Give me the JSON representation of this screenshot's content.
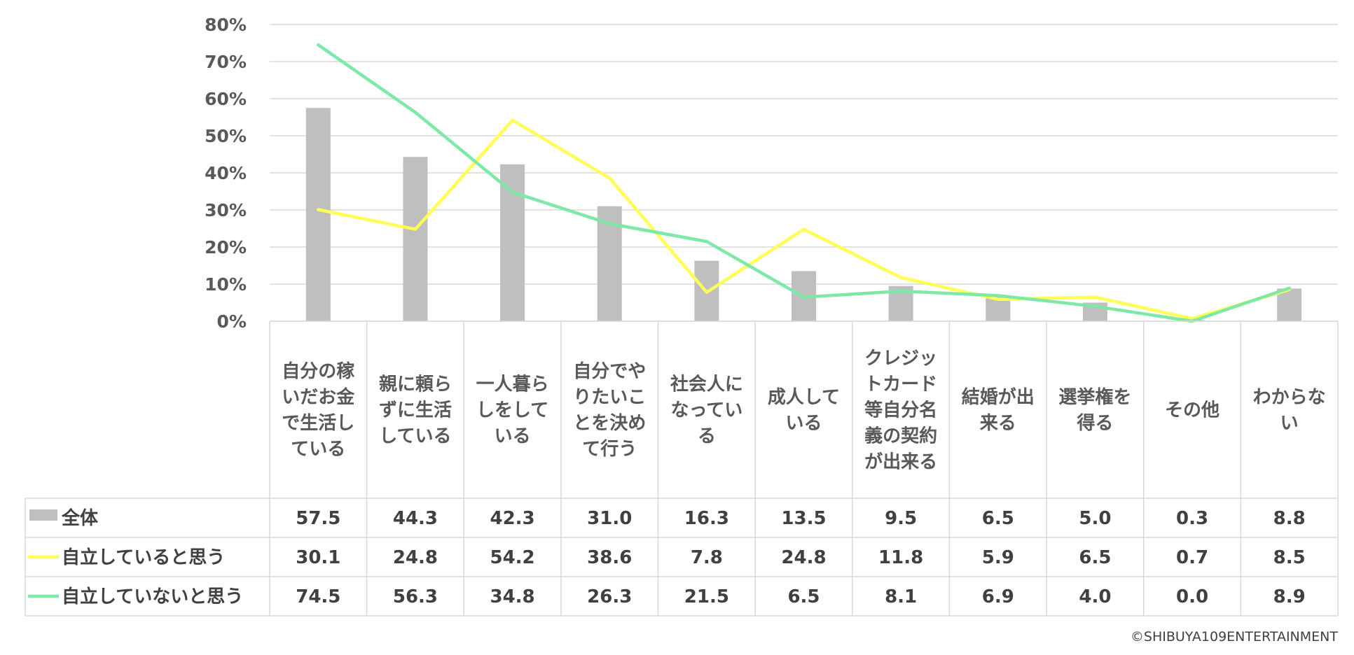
{
  "chart_data": {
    "type": "bar",
    "categories": [
      "自分の稼いだお金で生活している",
      "親に頼らずに生活している",
      "一人暮らしをしている",
      "自分でやりたいことを決めて行う",
      "社会人になっている",
      "成人している",
      "クレジットカード等自分名義の契約が出来る",
      "結婚が出来る",
      "選挙権を得る",
      "その他",
      "わからない"
    ],
    "category_lines": [
      [
        "自分の稼",
        "いだお金",
        "で生活し",
        "ている"
      ],
      [
        "親に頼ら",
        "ずに生活",
        "している"
      ],
      [
        "一人暮ら",
        "しをして",
        "いる"
      ],
      [
        "自分でや",
        "りたいこ",
        "とを決め",
        "て行う"
      ],
      [
        "社会人に",
        "なってい",
        "る"
      ],
      [
        "成人して",
        "いる"
      ],
      [
        "クレジッ",
        "トカード",
        "等自分名",
        "義の契約",
        "が出来る"
      ],
      [
        "結婚が出",
        "来る"
      ],
      [
        "選挙権を",
        "得る"
      ],
      [
        "その他"
      ],
      [
        "わからな",
        "い"
      ]
    ],
    "series": [
      {
        "name": "全体",
        "type": "bar",
        "color": "#bfbfbf",
        "values": [
          57.5,
          44.3,
          42.3,
          31.0,
          16.3,
          13.5,
          9.5,
          6.5,
          5.0,
          0.3,
          8.8
        ],
        "labels": [
          "57.5",
          "44.3",
          "42.3",
          "31.0",
          "16.3",
          "13.5",
          "9.5",
          "6.5",
          "5.0",
          "0.3",
          "8.8"
        ]
      },
      {
        "name": "自立していると思う",
        "type": "line",
        "color": "#ffff55",
        "values": [
          30.1,
          24.8,
          54.2,
          38.6,
          7.8,
          24.8,
          11.8,
          5.9,
          6.5,
          0.7,
          8.5
        ],
        "labels": [
          "30.1",
          "24.8",
          "54.2",
          "38.6",
          "7.8",
          "24.8",
          "11.8",
          "5.9",
          "6.5",
          "0.7",
          "8.5"
        ]
      },
      {
        "name": "自立していないと思う",
        "type": "line",
        "color": "#7ee8a8",
        "values": [
          74.5,
          56.3,
          34.8,
          26.3,
          21.5,
          6.5,
          8.1,
          6.9,
          4.0,
          0.0,
          8.9
        ],
        "labels": [
          "74.5",
          "56.3",
          "34.8",
          "26.3",
          "21.5",
          "6.5",
          "8.1",
          "6.9",
          "4.0",
          "0.0",
          "8.9"
        ]
      }
    ],
    "yticks": [
      "0%",
      "10%",
      "20%",
      "30%",
      "40%",
      "50%",
      "60%",
      "70%",
      "80%"
    ],
    "ylim": [
      0,
      80
    ],
    "grid": true,
    "legend": "data-table"
  },
  "copyright": "©SHIBUYA109ENTERTAINMENT"
}
